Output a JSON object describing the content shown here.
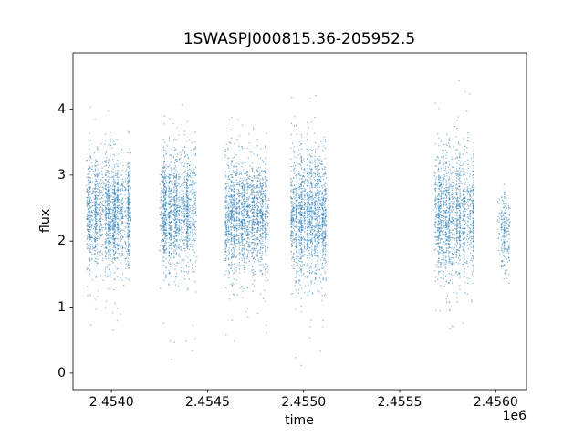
{
  "chart_data": {
    "type": "scatter",
    "title": "1SWASPJ000815.36-205952.5",
    "xlabel": "time",
    "ylabel": "flux",
    "x_offset_label": "1e6",
    "xlim": [
      2453800,
      2456160
    ],
    "ylim": [
      -0.25,
      4.85
    ],
    "xticks": [
      2454000,
      2454500,
      2455000,
      2455500,
      2456000
    ],
    "xtick_labels": [
      "2.4540",
      "2.4545",
      "2.4550",
      "2.4555",
      "2.4560"
    ],
    "yticks": [
      0,
      1,
      2,
      3,
      4
    ],
    "ytick_labels": [
      "0",
      "1",
      "2",
      "3",
      "4"
    ],
    "grid": false,
    "legend": "none",
    "marker_color": "#1f77b4",
    "marker_alpha": 0.55,
    "marker_size_px": 1.2,
    "description": "Dense ground-based photometric light curve; six observing-season clusters of small blue points with vertical nightly striping. Clusters parameterized below; y values approximately normal around y_mean with std y_std, rare outliers, clipped to [y_min, y_max].",
    "clusters": [
      {
        "x_min": 2453870,
        "x_max": 2454105,
        "n": 1700,
        "nights": 18,
        "y_mean": 2.4,
        "y_std": 0.42,
        "y_min": 0.55,
        "y_max": 4.35,
        "outlier_frac": 0.05
      },
      {
        "x_min": 2454250,
        "x_max": 2454445,
        "n": 1400,
        "nights": 14,
        "y_mean": 2.45,
        "y_std": 0.45,
        "y_min": 0.12,
        "y_max": 4.4,
        "outlier_frac": 0.05
      },
      {
        "x_min": 2454590,
        "x_max": 2454820,
        "n": 1700,
        "nights": 17,
        "y_mean": 2.38,
        "y_std": 0.42,
        "y_min": 0.3,
        "y_max": 4.05,
        "outlier_frac": 0.05
      },
      {
        "x_min": 2454930,
        "x_max": 2455120,
        "n": 1600,
        "nights": 14,
        "y_mean": 2.35,
        "y_std": 0.48,
        "y_min": 0.08,
        "y_max": 4.65,
        "outlier_frac": 0.06
      },
      {
        "x_min": 2455680,
        "x_max": 2455890,
        "n": 1400,
        "nights": 15,
        "y_mean": 2.4,
        "y_std": 0.48,
        "y_min": 0.6,
        "y_max": 4.5,
        "outlier_frac": 0.05
      },
      {
        "x_min": 2456010,
        "x_max": 2456075,
        "n": 200,
        "nights": 5,
        "y_mean": 2.1,
        "y_std": 0.33,
        "y_min": 1.35,
        "y_max": 2.9,
        "outlier_frac": 0.02
      }
    ]
  }
}
